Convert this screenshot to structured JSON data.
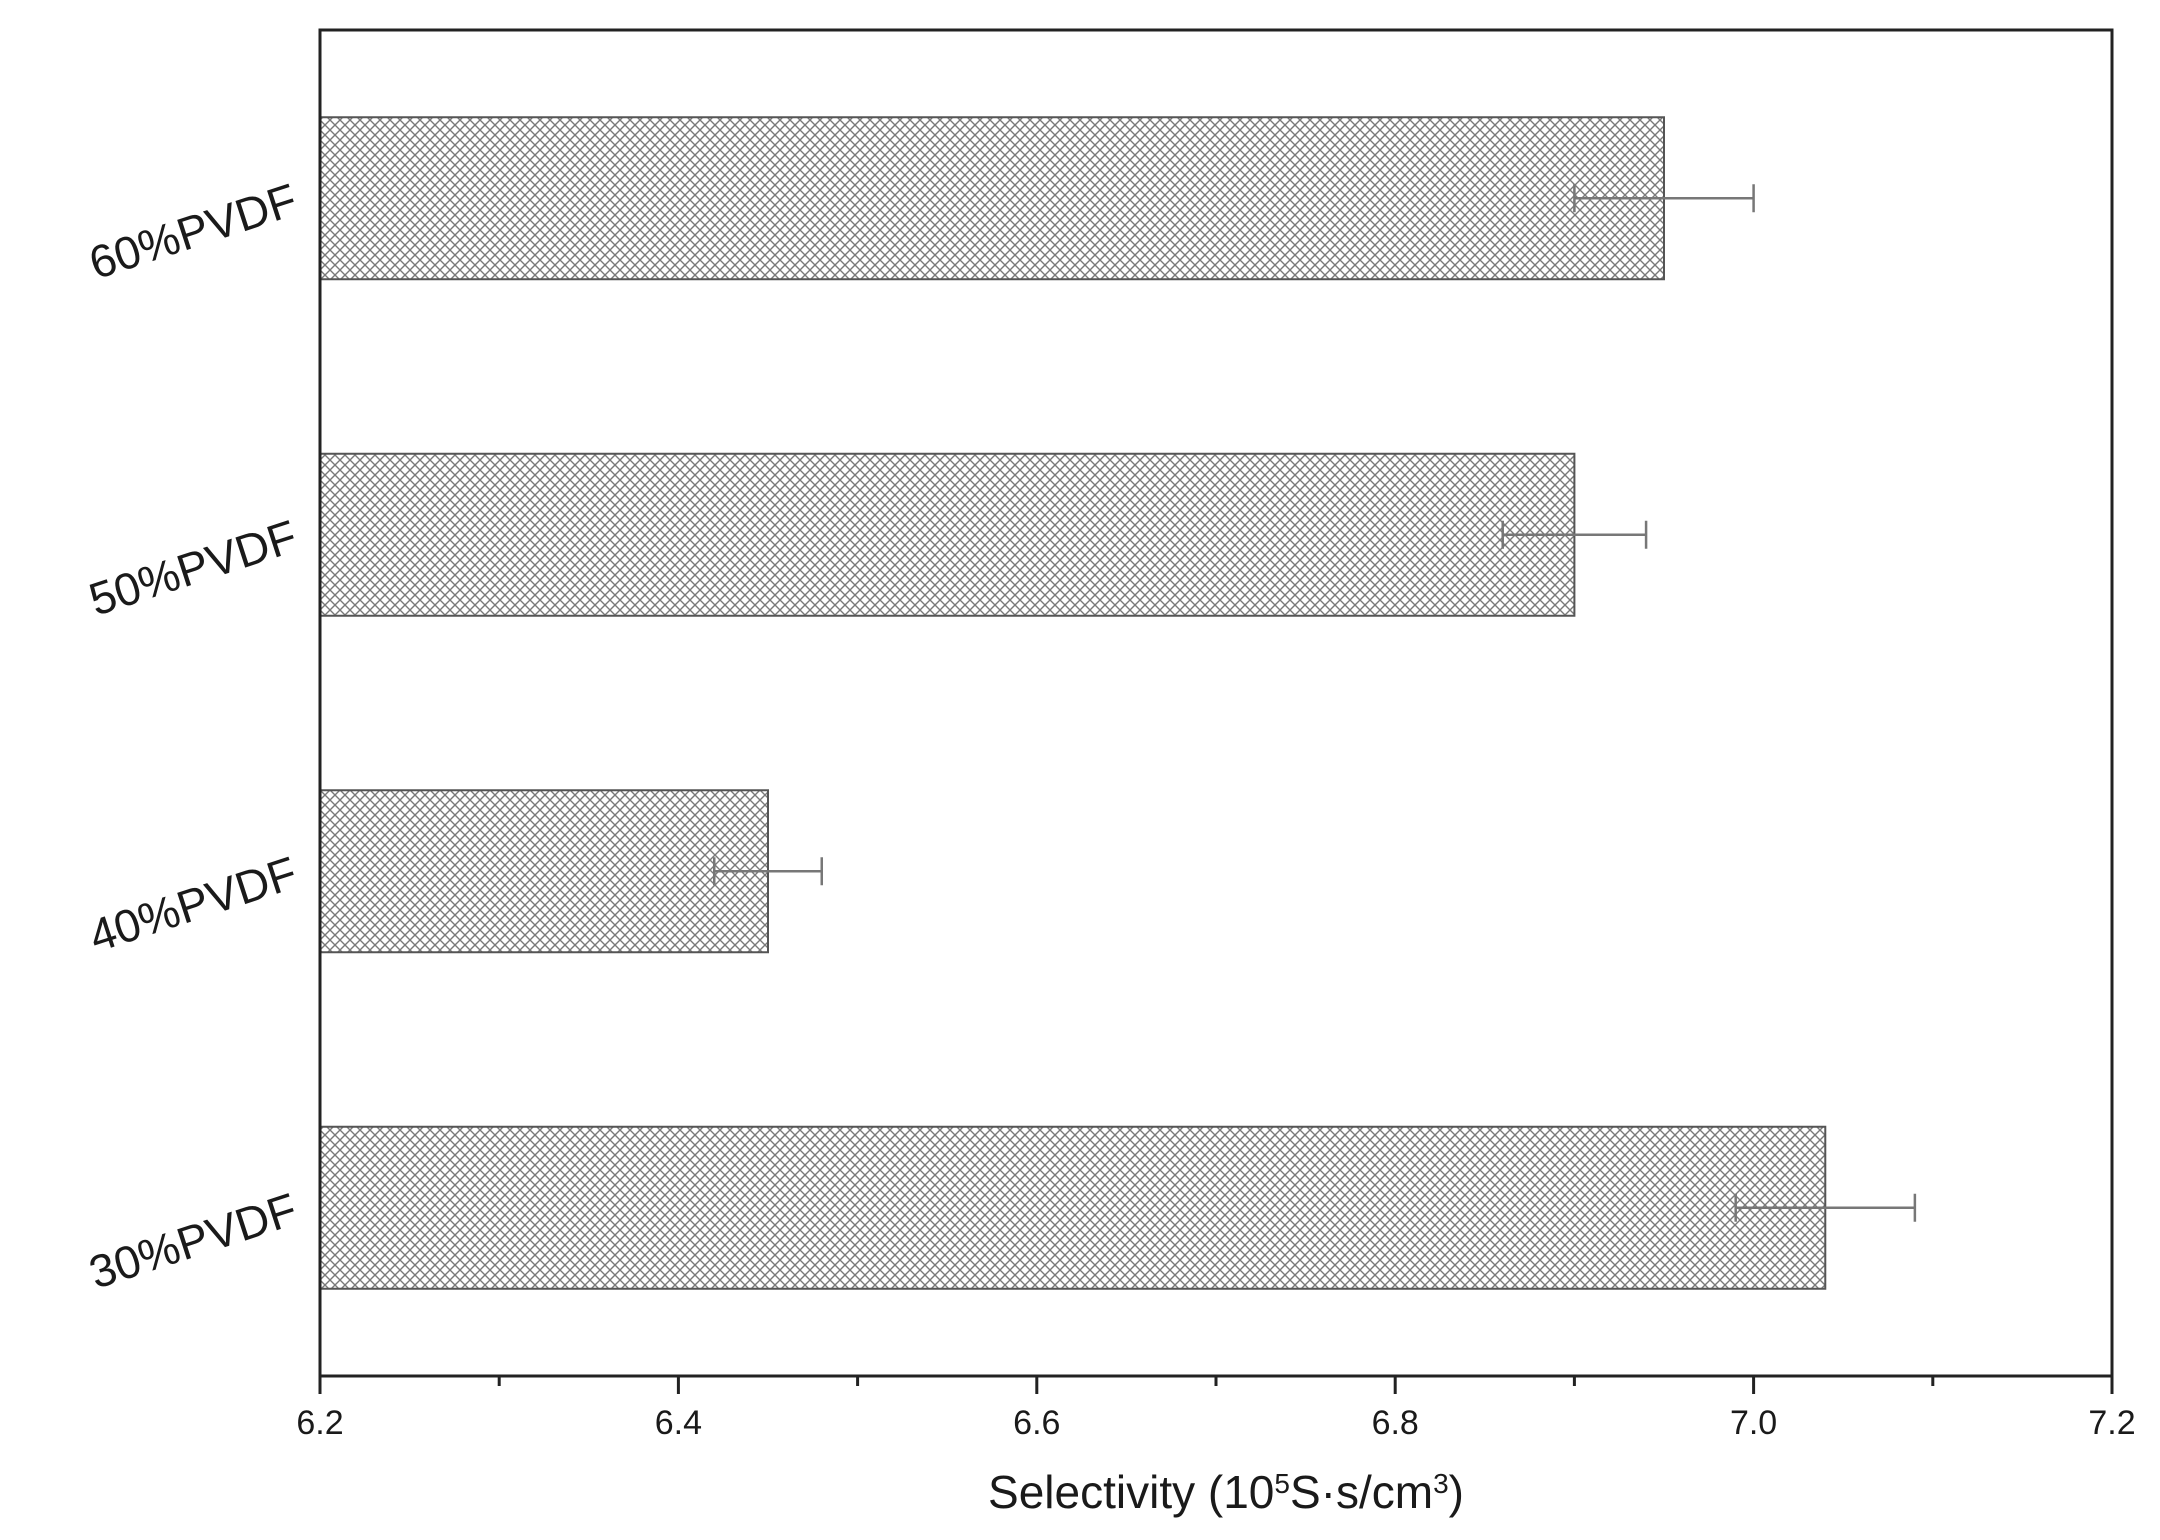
{
  "chart_data": {
    "type": "bar",
    "orientation": "horizontal",
    "title": "",
    "xlabel": {
      "prefix": "Selectivity (10",
      "sup1": "5",
      "middle": "S·s/cm",
      "sup2": "3",
      "suffix": ")"
    },
    "ylabel": "",
    "categories": [
      "60%PVDF",
      "50%PVDF",
      "40%PVDF",
      "30%PVDF"
    ],
    "values": [
      6.95,
      6.9,
      6.45,
      7.04
    ],
    "errors": [
      0.05,
      0.04,
      0.03,
      0.05
    ],
    "xlim": [
      6.2,
      7.2
    ],
    "xticks": [
      "6.2",
      "6.4",
      "6.6",
      "6.8",
      "7.0",
      "7.2"
    ],
    "grid": false,
    "bar_fill": "crosshatch",
    "colors": {
      "bar_stroke": "#555555",
      "hatch": "#7a7a7a",
      "axis": "#222222",
      "errorbar": "#777777"
    }
  }
}
